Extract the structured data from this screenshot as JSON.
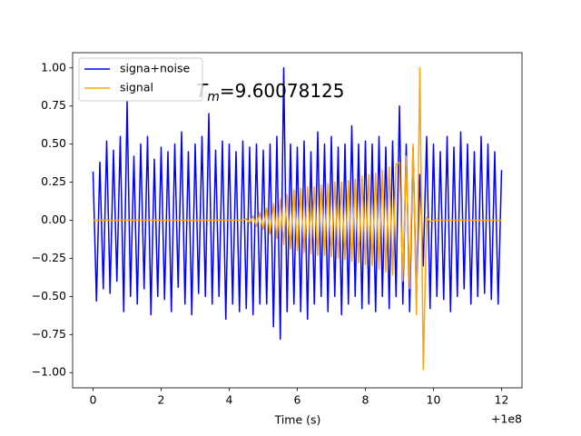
{
  "chart_data": {
    "type": "line",
    "x_label": "Time (s)",
    "x_offset_label": "+1e8",
    "annotation": {
      "base": "T",
      "sub": "m",
      "text": "=9.60078125"
    },
    "xlim": [
      -0.6,
      12.6
    ],
    "ylim": [
      -1.1,
      1.1
    ],
    "xticks": [
      0,
      2,
      4,
      6,
      8,
      10,
      12
    ],
    "yticks": [
      {
        "value": -1,
        "label": "−1.00"
      },
      {
        "value": -0.75,
        "label": "−0.75"
      },
      {
        "value": -0.5,
        "label": "−0.50"
      },
      {
        "value": -0.25,
        "label": "−0.25"
      },
      {
        "value": 0,
        "label": "0.00"
      },
      {
        "value": 0.25,
        "label": "0.25"
      },
      {
        "value": 0.5,
        "label": "0.50"
      },
      {
        "value": 0.75,
        "label": "0.75"
      },
      {
        "value": 1,
        "label": "1.00"
      }
    ],
    "legend": "upper left",
    "x": [
      0,
      0.1,
      0.2,
      0.3,
      0.4,
      0.5,
      0.6,
      0.7,
      0.8,
      0.9,
      1,
      1.1,
      1.2,
      1.3,
      1.4,
      1.5,
      1.6,
      1.7,
      1.8,
      1.9,
      2,
      2.1,
      2.2,
      2.3,
      2.4,
      2.5,
      2.6,
      2.7,
      2.8,
      2.9,
      3,
      3.1,
      3.2,
      3.3,
      3.4,
      3.5,
      3.6,
      3.7,
      3.8,
      3.9,
      4,
      4.1,
      4.2,
      4.3,
      4.4,
      4.5,
      4.6,
      4.7,
      4.8,
      4.9,
      5,
      5.1,
      5.2,
      5.3,
      5.4,
      5.5,
      5.6,
      5.7,
      5.8,
      5.9,
      6,
      6.1,
      6.2,
      6.3,
      6.4,
      6.5,
      6.6,
      6.7,
      6.8,
      6.9,
      7,
      7.1,
      7.2,
      7.3,
      7.4,
      7.5,
      7.6,
      7.7,
      7.8,
      7.9,
      8,
      8.1,
      8.2,
      8.3,
      8.4,
      8.5,
      8.6,
      8.7,
      8.8,
      8.9,
      9,
      9.1,
      9.2,
      9.3,
      9.4,
      9.5,
      9.6,
      9.7,
      9.8,
      9.9,
      10,
      10.1,
      10.2,
      10.3,
      10.4,
      10.5,
      10.6,
      10.7,
      10.8,
      10.9,
      11,
      11.1,
      11.2,
      11.3,
      11.4,
      11.5,
      11.6,
      11.7,
      11.8,
      11.9,
      12
    ],
    "series": [
      {
        "name": "signa+noise",
        "color": "#0000ff",
        "values": [
          0.32,
          -0.53,
          0.38,
          -0.45,
          0.52,
          -0.48,
          0.46,
          -0.4,
          0.55,
          -0.6,
          0.78,
          -0.5,
          0.42,
          -0.55,
          0.5,
          -0.45,
          0.55,
          -0.62,
          0.4,
          -0.5,
          0.48,
          -0.52,
          0.45,
          -0.6,
          0.5,
          -0.44,
          0.58,
          -0.55,
          0.45,
          -0.62,
          0.5,
          -0.48,
          0.55,
          -0.5,
          0.7,
          -0.55,
          0.46,
          -0.5,
          0.52,
          -0.65,
          0.5,
          -0.55,
          0.45,
          -0.6,
          0.52,
          -0.58,
          0.48,
          -0.62,
          0.5,
          -0.55,
          0.46,
          -0.55,
          0.5,
          -0.7,
          0.55,
          -0.78,
          1.0,
          -0.6,
          0.5,
          -0.55,
          0.48,
          -0.6,
          0.52,
          -0.65,
          0.45,
          -0.55,
          0.58,
          -0.5,
          0.5,
          -0.6,
          0.55,
          -0.5,
          0.48,
          -0.62,
          0.5,
          -0.55,
          0.62,
          -0.5,
          0.5,
          -0.58,
          0.52,
          -0.55,
          0.5,
          -0.6,
          0.55,
          -0.5,
          0.48,
          -0.58,
          0.52,
          -0.5,
          0.75,
          -0.55,
          0.5,
          -0.6,
          0.48,
          -0.5,
          0.3,
          -0.3,
          0.55,
          -0.58,
          0.5,
          -0.5,
          0.45,
          -0.52,
          0.55,
          -0.6,
          0.48,
          -0.5,
          0.58,
          -0.45,
          0.5,
          -0.55,
          0.45,
          -0.5,
          0.55,
          -0.48,
          0.5,
          -0.52,
          0.45,
          -0.55,
          0.33
        ]
      },
      {
        "name": "signal",
        "color": "#ffa500",
        "values": [
          0,
          0,
          0,
          0,
          0,
          0,
          0,
          0,
          0,
          0,
          0,
          0,
          0,
          0,
          0,
          0,
          0,
          0,
          0,
          0,
          0,
          0,
          0,
          0,
          0,
          0,
          0,
          0,
          0,
          0,
          0,
          0,
          0,
          0,
          0,
          0,
          0,
          0,
          0,
          0,
          0,
          0,
          0,
          0,
          0,
          0.01,
          -0.02,
          0.03,
          -0.04,
          0.05,
          -0.06,
          0.08,
          -0.09,
          0.11,
          -0.12,
          0.14,
          -0.16,
          0.17,
          -0.19,
          0.2,
          -0.2,
          0.21,
          -0.21,
          0.22,
          -0.22,
          0.22,
          -0.23,
          0.23,
          -0.23,
          0.24,
          -0.24,
          0.25,
          -0.25,
          0.25,
          -0.26,
          0.26,
          -0.27,
          0.27,
          -0.28,
          0.29,
          -0.29,
          0.3,
          -0.3,
          0.31,
          -0.32,
          0.33,
          -0.34,
          0.35,
          -0.36,
          0.37,
          0.38,
          -0.4,
          0.42,
          -0.45,
          0.5,
          -0.62,
          1.0,
          -0.98,
          0.02,
          -0.01,
          0,
          0,
          0,
          0,
          0,
          0,
          0,
          0,
          0,
          0,
          0,
          0,
          0,
          0,
          0,
          0,
          0,
          0,
          0,
          0,
          0
        ]
      }
    ]
  }
}
